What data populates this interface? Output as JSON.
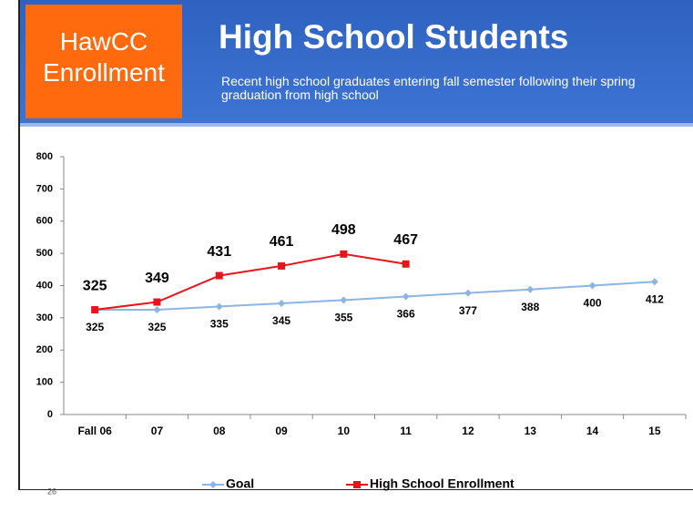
{
  "slide": {
    "badge": "HawCC Enrollment",
    "title": "High School Students",
    "subtitle": "Recent high school graduates entering fall semester following their spring graduation from high school",
    "number": "26"
  },
  "chart_data": {
    "type": "line",
    "categories": [
      "Fall 06",
      "07",
      "08",
      "09",
      "10",
      "11",
      "12",
      "13",
      "14",
      "15"
    ],
    "series": [
      {
        "name": "Goal",
        "color": "#8db4e2",
        "marker": "diamond",
        "values": [
          325,
          325,
          335,
          345,
          355,
          366,
          377,
          388,
          400,
          412
        ]
      },
      {
        "name": "High School Enrollment",
        "color": "#e8141b",
        "marker": "square",
        "values": [
          325,
          349,
          431,
          461,
          498,
          467,
          null,
          null,
          null,
          null
        ]
      }
    ],
    "ylim": [
      0,
      800
    ],
    "yticks": [
      0,
      100,
      200,
      300,
      400,
      500,
      600,
      700,
      800
    ],
    "grid": false,
    "legend": "bottom"
  }
}
